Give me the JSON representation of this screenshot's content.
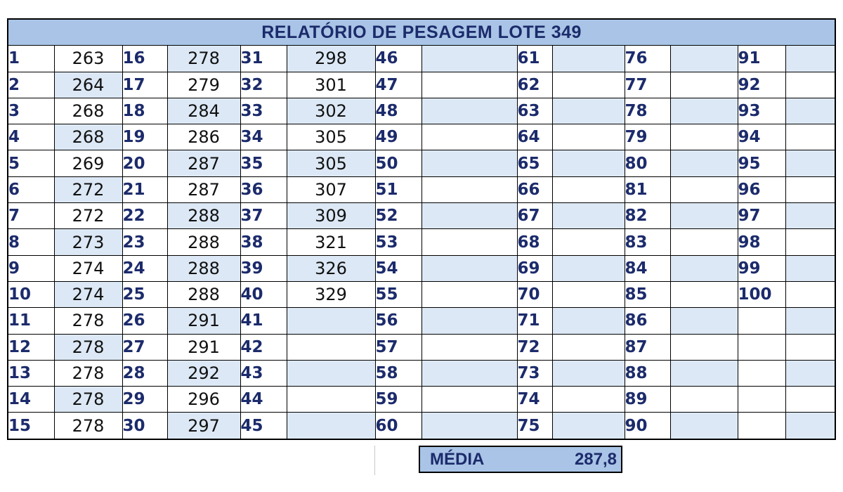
{
  "title": "RELATÓRIO DE PESAGEM LOTE 349",
  "columns": [
    {
      "start": 1,
      "weights": [
        "263",
        "264",
        "268",
        "268",
        "269",
        "272",
        "272",
        "273",
        "274",
        "274",
        "278",
        "278",
        "278",
        "278",
        "278"
      ]
    },
    {
      "start": 16,
      "weights": [
        "278",
        "279",
        "284",
        "286",
        "287",
        "287",
        "288",
        "288",
        "288",
        "288",
        "291",
        "291",
        "292",
        "296",
        "297"
      ]
    },
    {
      "start": 31,
      "weights": [
        "298",
        "301",
        "302",
        "305",
        "305",
        "307",
        "309",
        "321",
        "326",
        "329",
        "",
        "",
        "",
        "",
        ""
      ]
    },
    {
      "start": 46,
      "weights": [
        "",
        "",
        "",
        "",
        "",
        "",
        "",
        "",
        "",
        "",
        "",
        "",
        "",
        "",
        ""
      ]
    },
    {
      "start": 61,
      "weights": [
        "",
        "",
        "",
        "",
        "",
        "",
        "",
        "",
        "",
        "",
        "",
        "",
        "",
        "",
        ""
      ]
    },
    {
      "start": 76,
      "weights": [
        "",
        "",
        "",
        "",
        "",
        "",
        "",
        "",
        "",
        "",
        "",
        "",
        "",
        "",
        ""
      ]
    },
    {
      "start": 91,
      "weights": [
        "",
        "",
        "",
        "",
        "",
        "",
        "",
        "",
        "",
        "",
        "",
        "",
        "",
        "",
        ""
      ]
    }
  ],
  "numbers": [
    [
      "1",
      "16",
      "31",
      "46",
      "61",
      "76",
      "91"
    ],
    [
      "2",
      "17",
      "32",
      "47",
      "62",
      "77",
      "92"
    ],
    [
      "3",
      "18",
      "33",
      "48",
      "63",
      "78",
      "93"
    ],
    [
      "4",
      "19",
      "34",
      "49",
      "64",
      "79",
      "94"
    ],
    [
      "5",
      "20",
      "35",
      "50",
      "65",
      "80",
      "95"
    ],
    [
      "6",
      "21",
      "36",
      "51",
      "66",
      "81",
      "96"
    ],
    [
      "7",
      "22",
      "37",
      "52",
      "67",
      "82",
      "97"
    ],
    [
      "8",
      "23",
      "38",
      "53",
      "68",
      "83",
      "98"
    ],
    [
      "9",
      "24",
      "39",
      "54",
      "69",
      "84",
      "99"
    ],
    [
      "10",
      "25",
      "40",
      "55",
      "70",
      "85",
      "100"
    ],
    [
      "11",
      "26",
      "41",
      "56",
      "71",
      "86",
      ""
    ],
    [
      "12",
      "27",
      "42",
      "57",
      "72",
      "87",
      ""
    ],
    [
      "13",
      "28",
      "43",
      "58",
      "73",
      "88",
      ""
    ],
    [
      "14",
      "29",
      "44",
      "59",
      "74",
      "89",
      ""
    ],
    [
      "15",
      "30",
      "45",
      "60",
      "75",
      "90",
      ""
    ]
  ],
  "summary": {
    "label": "MÉDIA",
    "value": "287,8"
  },
  "colors": {
    "header_bg": "#a9c4e6",
    "band_bg": "#dce8f5",
    "index_text": "#1c2b6b"
  }
}
